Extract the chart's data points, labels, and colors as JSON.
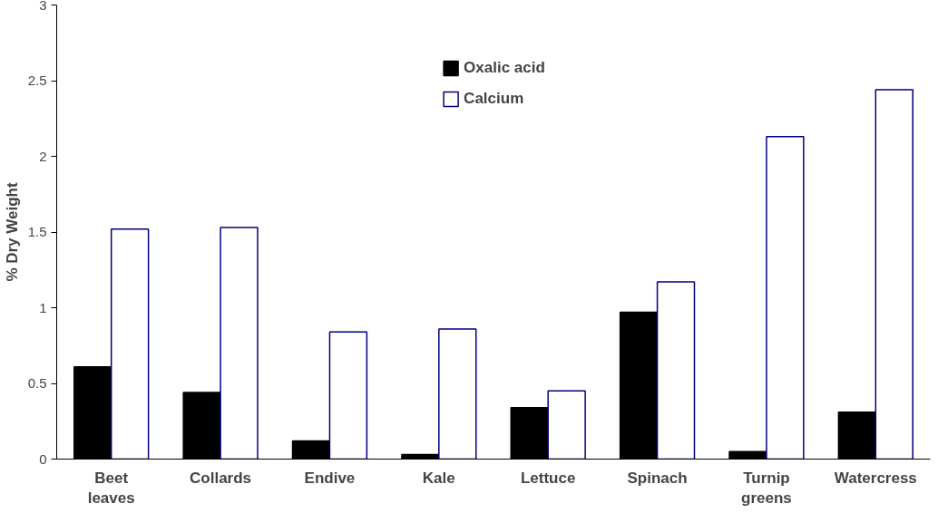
{
  "chart_data": {
    "type": "bar",
    "ylabel": "% Dry Weight",
    "categories": [
      "Beet leaves",
      "Collards",
      "Endive",
      "Kale",
      "Lettuce",
      "Spinach",
      "Turnip greens",
      "Watercress"
    ],
    "series": [
      {
        "name": "Oxalic acid",
        "color": "#000000",
        "values": [
          0.61,
          0.44,
          0.12,
          0.03,
          0.34,
          0.97,
          0.05,
          0.31
        ]
      },
      {
        "name": "Calcium",
        "color": "#ffffff",
        "values": [
          1.52,
          1.53,
          0.84,
          0.86,
          0.45,
          1.17,
          2.13,
          2.44
        ]
      }
    ],
    "ylim": [
      0,
      3
    ],
    "yticks": [
      0,
      0.5,
      1,
      1.5,
      2,
      2.5,
      3
    ],
    "grid": false,
    "legend": "top"
  }
}
